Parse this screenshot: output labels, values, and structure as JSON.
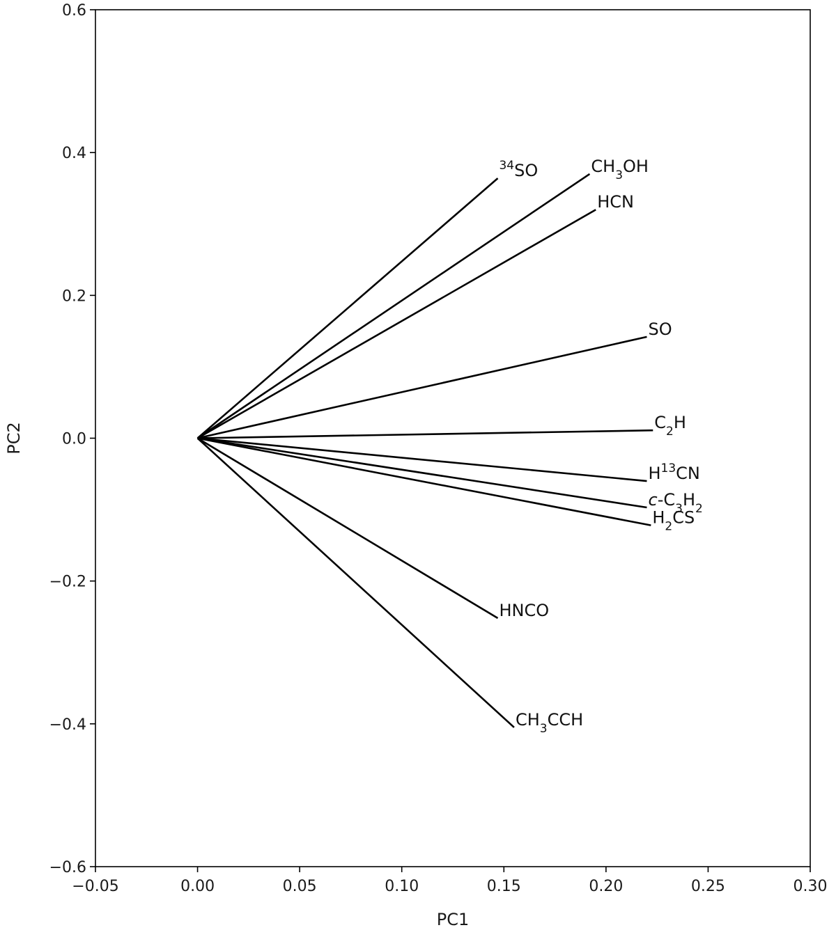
{
  "chart_data": {
    "type": "line",
    "plot_kind": "loading-vectors",
    "title": "",
    "xlabel": "PC1",
    "ylabel": "PC2",
    "xlim": [
      -0.05,
      0.3
    ],
    "ylim": [
      -0.6,
      0.6
    ],
    "xticks": [
      -0.05,
      0.0,
      0.05,
      0.1,
      0.15,
      0.2,
      0.25,
      0.3
    ],
    "xtick_labels": [
      "−0.05",
      "0.00",
      "0.05",
      "0.10",
      "0.15",
      "0.20",
      "0.25",
      "0.30"
    ],
    "yticks": [
      -0.6,
      -0.4,
      -0.2,
      0.0,
      0.2,
      0.4,
      0.6
    ],
    "ytick_labels": [
      "−0.6",
      "−0.4",
      "−0.2",
      "0.0",
      "0.2",
      "0.4",
      "0.6"
    ],
    "grid": false,
    "origin": [
      0.0,
      0.0
    ],
    "vectors": [
      {
        "label": [
          {
            "t": "34",
            "sup": true
          },
          {
            "t": "SO"
          }
        ],
        "x": 0.147,
        "y": 0.364
      },
      {
        "label": [
          {
            "t": "CH"
          },
          {
            "t": "3",
            "sub": true
          },
          {
            "t": "OH"
          }
        ],
        "x": 0.192,
        "y": 0.37
      },
      {
        "label": [
          {
            "t": "HCN"
          }
        ],
        "x": 0.195,
        "y": 0.32
      },
      {
        "label": [
          {
            "t": "SO"
          }
        ],
        "x": 0.22,
        "y": 0.142
      },
      {
        "label": [
          {
            "t": "C"
          },
          {
            "t": "2",
            "sub": true
          },
          {
            "t": "H"
          }
        ],
        "x": 0.223,
        "y": 0.011
      },
      {
        "label": [
          {
            "t": "H"
          },
          {
            "t": "13",
            "sup": true
          },
          {
            "t": "CN"
          }
        ],
        "x": 0.22,
        "y": -0.06
      },
      {
        "label": [
          {
            "t": "c",
            "italic": true
          },
          {
            "t": "-C"
          },
          {
            "t": "3",
            "sub": true
          },
          {
            "t": "H"
          },
          {
            "t": "2",
            "sub": true
          }
        ],
        "x": 0.22,
        "y": -0.097
      },
      {
        "label": [
          {
            "t": "H"
          },
          {
            "t": "2",
            "sub": true
          },
          {
            "t": "CS"
          }
        ],
        "x": 0.222,
        "y": -0.122
      },
      {
        "label": [
          {
            "t": "HNCO"
          }
        ],
        "x": 0.147,
        "y": -0.252
      },
      {
        "label": [
          {
            "t": "CH"
          },
          {
            "t": "3",
            "sub": true
          },
          {
            "t": "CCH"
          }
        ],
        "x": 0.155,
        "y": -0.405
      }
    ]
  }
}
